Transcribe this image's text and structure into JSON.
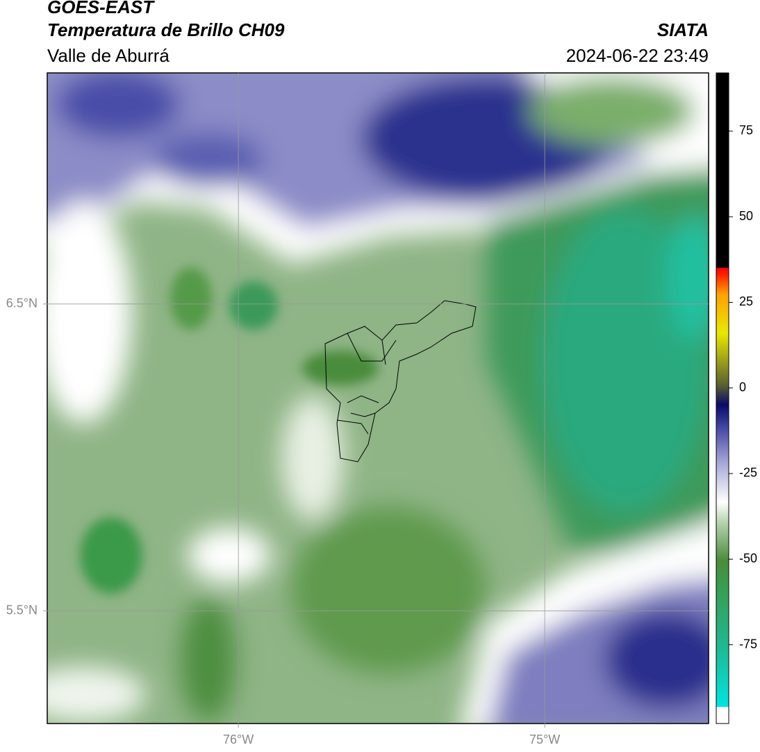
{
  "header": {
    "title": "GOES-EAST",
    "subtitle": "Temperatura de Brillo CH09",
    "region": "Valle de Aburrá",
    "source": "SIATA",
    "datetime": "2024-06-22 23:49"
  },
  "map": {
    "xlim": [
      -76.624,
      -74.465
    ],
    "ylim": [
      5.133,
      7.253
    ],
    "xticks": [
      {
        "value": -76,
        "label": "76°W"
      },
      {
        "value": -75,
        "label": "75°W"
      }
    ],
    "yticks": [
      {
        "value": 6.5,
        "label": "6.5°N"
      },
      {
        "value": 5.5,
        "label": "5.5°N"
      }
    ],
    "grid": true
  },
  "colorbar": {
    "lim": [
      -98,
      92
    ],
    "ticks": [
      75,
      50,
      25,
      0,
      -25,
      -50,
      -75
    ]
  }
}
